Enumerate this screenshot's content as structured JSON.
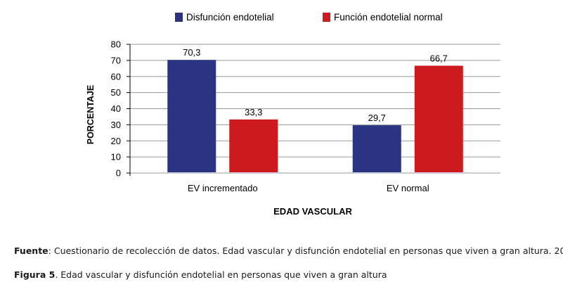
{
  "chart_data": {
    "type": "bar",
    "categories": [
      "EV incrementado",
      "EV normal"
    ],
    "series": [
      {
        "name": "Disfunción endotelial",
        "values": [
          70.3,
          29.7
        ],
        "labels": [
          "70,3",
          "29,7"
        ],
        "color": "#2a3482"
      },
      {
        "name": "Función endotelial normal",
        "values": [
          33.3,
          66.7
        ],
        "labels": [
          "33,3",
          "66,7"
        ],
        "color": "#cc1a1f"
      }
    ],
    "xlabel": "EDAD VASCULAR",
    "ylabel": "PORCENTAJE",
    "ylim": [
      0,
      80
    ],
    "yticks": [
      0,
      10,
      20,
      30,
      40,
      50,
      60,
      70,
      80
    ],
    "grid": true,
    "legend_position": "top"
  },
  "captions": {
    "source_label": "Fuente",
    "source_text": ": Cuestionario de recolección de datos. Edad vascular y disfunción endotelial en personas que viven a gran altura. 20",
    "figure_label": "Figura 5",
    "figure_text": ". Edad vascular y disfunción endotelial en personas que viven a gran altura"
  }
}
